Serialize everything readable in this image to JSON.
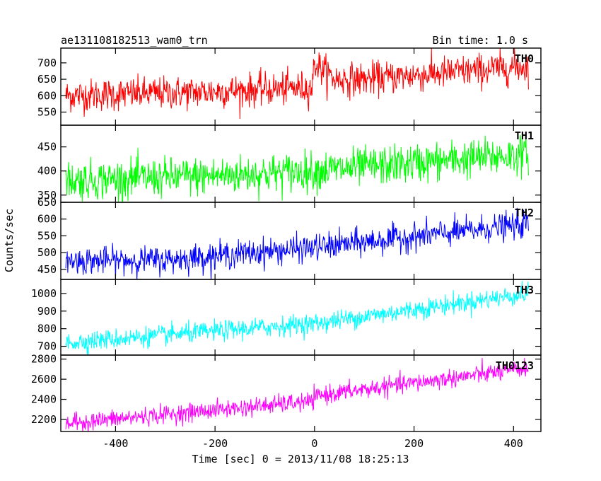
{
  "header": {
    "title": "ae131108182513_wam0_trn",
    "bin_time": "Bin time: 1.0 s"
  },
  "chart_data": {
    "type": "line",
    "ylabel": "Counts/sec",
    "xlabel": "Time [sec] 0 = 2013/11/08 18:25:13",
    "xlim": [
      -510,
      455
    ],
    "xticks": [
      "-400",
      "-200",
      "0",
      "200",
      "400"
    ],
    "xtick_values": [
      -400,
      -200,
      0,
      200,
      400
    ],
    "x_range": [
      -500,
      430
    ],
    "bin_seconds": 1.0,
    "panels": [
      {
        "name": "TH0",
        "color": "#ff0000",
        "ylim": [
          510,
          745
        ],
        "yticks": [
          "550",
          "600",
          "650",
          "700"
        ],
        "ytick_values": [
          550,
          600,
          650,
          700
        ],
        "trend": [
          [
            -500,
            600
          ],
          [
            -250,
            610
          ],
          [
            -5,
            625
          ],
          [
            0,
            700
          ],
          [
            40,
            650
          ],
          [
            100,
            650
          ],
          [
            430,
            690
          ]
        ],
        "noise": 25
      },
      {
        "name": "TH1",
        "color": "#00ff00",
        "ylim": [
          335,
          495
        ],
        "yticks": [
          "350",
          "400",
          "450"
        ],
        "ytick_values": [
          350,
          400,
          450
        ],
        "trend": [
          [
            -500,
            380
          ],
          [
            -200,
            390
          ],
          [
            0,
            400
          ],
          [
            430,
            435
          ]
        ],
        "noise": 20
      },
      {
        "name": "TH2",
        "color": "#0000ff",
        "ylim": [
          420,
          650
        ],
        "yticks": [
          "450",
          "500",
          "550",
          "600",
          "650"
        ],
        "ytick_values": [
          450,
          500,
          550,
          600,
          650
        ],
        "trend": [
          [
            -500,
            475
          ],
          [
            -300,
            478
          ],
          [
            0,
            515
          ],
          [
            430,
            585
          ]
        ],
        "noise": 20
      },
      {
        "name": "TH3",
        "color": "#00ffff",
        "ylim": [
          650,
          1080
        ],
        "yticks": [
          "700",
          "800",
          "900",
          "1000"
        ],
        "ytick_values": [
          700,
          800,
          900,
          1000
        ],
        "trend": [
          [
            -500,
            720
          ],
          [
            0,
            830
          ],
          [
            430,
            1000
          ]
        ],
        "noise": 28
      },
      {
        "name": "TH0123",
        "color": "#ff00ff",
        "ylim": [
          2080,
          2840
        ],
        "yticks": [
          "2200",
          "2400",
          "2600",
          "2800"
        ],
        "ytick_values": [
          2200,
          2400,
          2600,
          2800
        ],
        "trend": [
          [
            -500,
            2160
          ],
          [
            -5,
            2380
          ],
          [
            10,
            2440
          ],
          [
            430,
            2710
          ]
        ],
        "noise": 45
      }
    ]
  }
}
